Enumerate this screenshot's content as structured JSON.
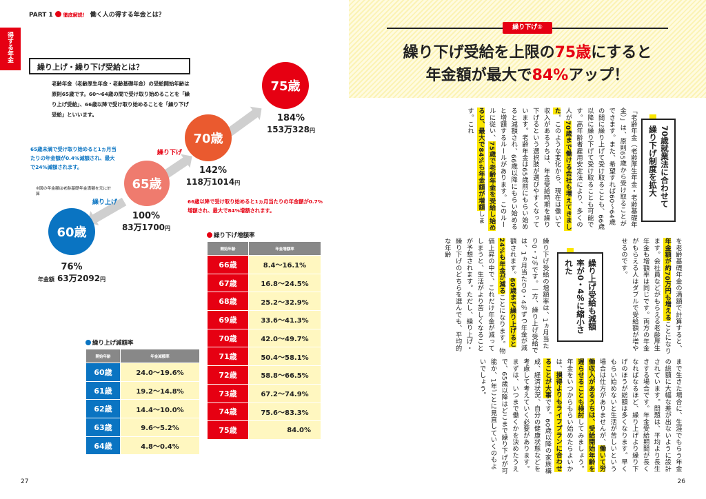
{
  "left_page": {
    "header": {
      "part": "PART 1",
      "badge": "徹底解説！",
      "title": "働く人の得する年金とは？"
    },
    "side_tab": "得する年金",
    "section_title": "繰り上げ・繰り下げ受給とは？",
    "intro": "老齢年金（老齢厚生年金・老齢基礎年金）の受給開始年齢は原則65歳です。60～64歳の間で受け取り始めることを「繰り上げ受給」、66歳以降で受け取り始めることを「繰り下げ受給」といいます。",
    "blue_note": "65歳未満で受け取り始めると1ヵ月当たりの年金額が0.4%減額され、最大で24%減額されます。",
    "small_note": "※図の年金額は老齢基礎年金満額を元に計算",
    "red_note": "66歳以降で受け取り始めると1ヵ月当たりの年金額が0.7%増額され、最大で84%増額されます。",
    "arrow_up_label": "繰り上げ",
    "arrow_down_label": "繰り下げ",
    "circles": [
      {
        "age": "60歳",
        "percent": "76%",
        "amount_prefix": "年金額",
        "amount": "63万2092",
        "unit": "円"
      },
      {
        "age": "65歳",
        "percent": "100%",
        "amount": "83万1700",
        "unit": "円"
      },
      {
        "age": "70歳",
        "percent": "142%",
        "amount": "118万1014",
        "unit": "円"
      },
      {
        "age": "75歳",
        "percent": "184%",
        "amount": "153万328",
        "unit": "円"
      }
    ],
    "down_table": {
      "title": "繰り下げ増額率",
      "headers": [
        "開始年齢",
        "年金増額率"
      ],
      "rows": [
        [
          "66歳",
          "8.4～16.1%"
        ],
        [
          "67歳",
          "16.8～24.5%"
        ],
        [
          "68歳",
          "25.2～32.9%"
        ],
        [
          "69歳",
          "33.6～41.3%"
        ],
        [
          "70歳",
          "42.0～49.7%"
        ],
        [
          "71歳",
          "50.4～58.1%"
        ],
        [
          "72歳",
          "58.8～66.5%"
        ],
        [
          "73歳",
          "67.2～74.9%"
        ],
        [
          "74歳",
          "75.6～83.3%"
        ],
        [
          "75歳",
          "84.0%"
        ]
      ]
    },
    "up_table": {
      "title": "繰り上げ減額率",
      "headers": [
        "開始年齢",
        "年金減額率"
      ],
      "rows": [
        [
          "60歳",
          "24.0～19.6%"
        ],
        [
          "61歳",
          "19.2～14.8%"
        ],
        [
          "62歳",
          "14.4～10.0%"
        ],
        [
          "63歳",
          "9.6～5.2%"
        ],
        [
          "64歳",
          "4.8～0.4%"
        ]
      ]
    },
    "page_number": "27"
  },
  "right_page": {
    "tag": "繰り下げ①",
    "title_line1_a": "繰り下げ受給を上限の",
    "title_line1_b": "75歳",
    "title_line1_c": "にすると",
    "title_line2_a": "年金額が最大で",
    "title_line2_b": "84%",
    "title_line2_c": "アップ！",
    "box1": "70歳就業法に合わせて繰り下げ制度を拡大",
    "col1_a": "「老齢年金（老齢厚生年金・老齢基礎年金）」は、原則65歳から受け取ることができます。また、希望すれば60～64歳の間に繰り上げて受け取ることも、66歳以降に繰り下げて受け取ることも可能です。高年齢者雇用安定法により、多くの人が",
    "col1_hl1": "70歳まで働ける会社も増えてきました",
    "col1_b": "。このような変化から、現在は働いて収入があるうちは、年金受給時期を繰り下げるという選択肢が選びやすくなっています。老齢年金は65歳前にもらい始めると減額され、66歳以降にもらい始めると増額するルールがあります。このルールに従い、",
    "col1_hl2": "75歳で老齢年金を受給し始めると、最大で84%も年金額が増額",
    "col1_c": "します。これ",
    "col2_a": "を老齢基礎年金の満額で計算すると、",
    "col2_hl": "年金額が約70万円も増える",
    "col2_b": "ことになります。会社員などがもらえる老齢厚生年金も増額率は同じです。両方の年金がもらえる人はダブルで受給額が増やせるのです。",
    "box2": "繰り上げ受給も減額率が0・4％に縮小された",
    "col3_a": "繰り下げ受給の増額率は、1ヵ月当たり0・7％です。一方、繰り上げ受給では、1ヵ月当たり0・4％ずつ年金が減額されます。",
    "col3_hl": "60歳まで繰り上げると24%も年金が減る",
    "col3_b": "ことになります。物価上昇の中で、これだけ年金が減ってしまうと、生活がより苦しくなることが予想されます。ただし、繰り上げ・繰り下げのどちらを選んでも、平均的な年齢",
    "col4_a": "まで生きた場合に、生涯でもらう年金の総額に大幅な差が出ないように設計されています。問題は、平均より長生きする場合です。年金受給期間が長くなればなるほど、繰り上げより繰り下げのほうが総額は多くなります。早くもらい始めないと生活が苦しいという場合は仕方がありませんが、",
    "col4_hl1": "働いて労働収入があるうちは、受給開始年齢を遅らせることも検討",
    "col4_b": "してみましょう。年金をいつからもらい始めたらよいかは、",
    "col4_hl2": "損得よりもライフプランに合わせることが大事",
    "col4_c": "です。60歳以降の家族構成、経済状況、自分の健康状態などを考慮して考えていく必要があります。まずは、いつまで働くかを決めたうえで、65歳以降はどこまで繰り下げが可能か、1年ごとに見直していくのもよいでしょう。",
    "page_number": "26"
  },
  "colors": {
    "red": "#e60012",
    "blue": "#0a74c2",
    "yellow": "#fbe600",
    "cream": "#fff7c0"
  }
}
